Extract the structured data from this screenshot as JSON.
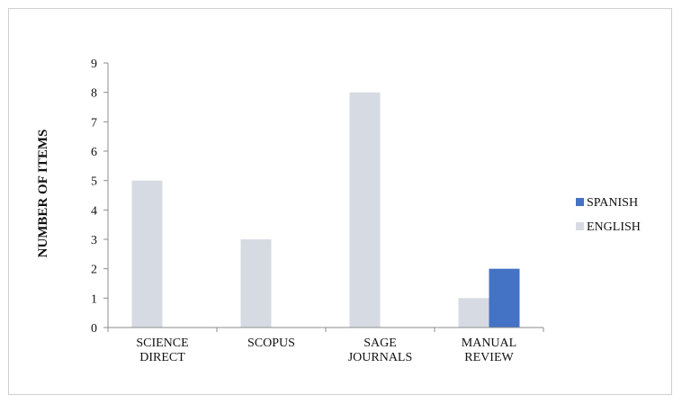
{
  "chart_data": {
    "type": "bar",
    "title": "",
    "xlabel": "",
    "ylabel": "NUMBER OF ITEMS",
    "ylim": [
      0,
      9
    ],
    "yticks": [
      0,
      1,
      2,
      3,
      4,
      5,
      6,
      7,
      8,
      9
    ],
    "categories": [
      [
        "SCIENCE",
        "DIRECT"
      ],
      [
        "SCOPUS"
      ],
      [
        "SAGE",
        "JOURNALS"
      ],
      [
        "MANUAL",
        "REVIEW"
      ]
    ],
    "series": [
      {
        "name": "ENGLISH",
        "color": "#d6dbe3",
        "values": [
          5,
          3,
          8,
          1
        ]
      },
      {
        "name": "SPANISH",
        "color": "#4472c4",
        "values": [
          0,
          0,
          0,
          2
        ]
      }
    ],
    "legend_order": [
      "SPANISH",
      "ENGLISH"
    ],
    "legend_position": "right",
    "grid": false
  }
}
